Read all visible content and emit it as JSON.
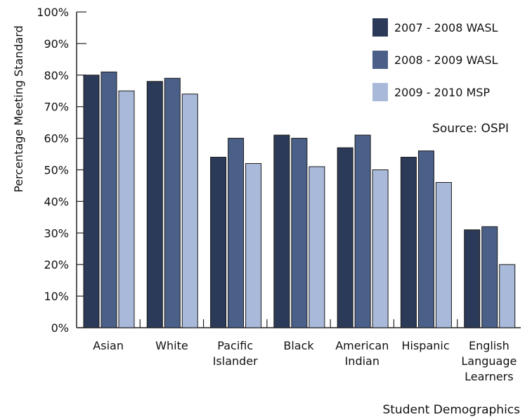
{
  "chart_data": {
    "type": "bar",
    "xlabel": "Student Demographics",
    "ylabel": "Percentage Meeting Standard",
    "source": "Source: OSPI",
    "ylim": [
      0,
      100
    ],
    "yticks": [
      "0%",
      "10%",
      "20%",
      "30%",
      "40%",
      "50%",
      "60%",
      "70%",
      "80%",
      "90%",
      "100%"
    ],
    "legend_position": "top-right",
    "categories": [
      [
        "Asian"
      ],
      [
        "White"
      ],
      [
        "Pacific",
        "Islander"
      ],
      [
        "Black"
      ],
      [
        "American",
        "Indian"
      ],
      [
        "Hispanic"
      ],
      [
        "English",
        "Language",
        "Learners"
      ]
    ],
    "series": [
      {
        "name": "2007 - 2008 WASL",
        "color": "#2b3a58",
        "values": [
          80,
          78,
          54,
          61,
          57,
          54,
          31
        ]
      },
      {
        "name": "2008 - 2009 WASL",
        "color": "#4a6088",
        "values": [
          81,
          79,
          60,
          60,
          61,
          56,
          32
        ]
      },
      {
        "name": "2009 - 2010 MSP",
        "color": "#a9b9da",
        "values": [
          75,
          74,
          52,
          51,
          50,
          46,
          20
        ]
      }
    ]
  }
}
